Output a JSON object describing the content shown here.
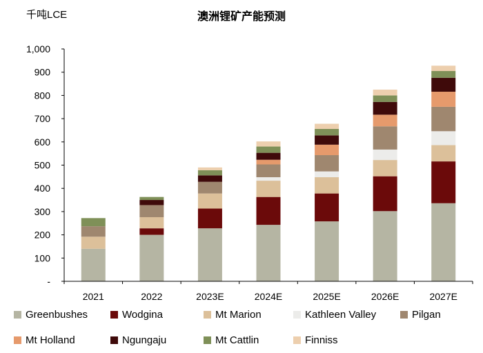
{
  "chart_data": {
    "type": "bar",
    "stacked": true,
    "title": "澳洲锂矿产能预测",
    "unit_label": "千吨LCE",
    "categories": [
      "2021",
      "2022",
      "2023E",
      "2024E",
      "2025E",
      "2026E",
      "2027E"
    ],
    "ylim": [
      0,
      1000
    ],
    "yticks": [
      0,
      100,
      200,
      300,
      400,
      500,
      600,
      700,
      800,
      900,
      1000
    ],
    "ytick_labels": [
      "-",
      "100",
      "200",
      "300",
      "400",
      "500",
      "600",
      "700",
      "800",
      "900",
      "1,000"
    ],
    "grid": false,
    "legend_position": "bottom",
    "series": [
      {
        "name": "Greenbushes",
        "color": "#b5b5a3",
        "values": [
          140,
          200,
          228,
          243,
          258,
          302,
          336
        ]
      },
      {
        "name": "Wodgina",
        "color": "#6b0a0a",
        "values": [
          0,
          28,
          85,
          120,
          120,
          150,
          180
        ]
      },
      {
        "name": "Mt Marion",
        "color": "#dcc09a",
        "values": [
          52,
          48,
          65,
          70,
          70,
          70,
          70
        ]
      },
      {
        "name": "Kathleen Valley",
        "color": "#ececea",
        "values": [
          0,
          0,
          0,
          15,
          25,
          45,
          60
        ]
      },
      {
        "name": "Pilgan",
        "color": "#9f876f",
        "values": [
          45,
          52,
          50,
          55,
          70,
          100,
          105
        ]
      },
      {
        "name": "Mt Holland",
        "color": "#e69a6c",
        "values": [
          0,
          0,
          0,
          20,
          45,
          50,
          65
        ]
      },
      {
        "name": "Ngungaju",
        "color": "#3f0a0a",
        "values": [
          0,
          22,
          28,
          30,
          40,
          55,
          60
        ]
      },
      {
        "name": "Mt Cattlin",
        "color": "#7f9058",
        "values": [
          35,
          13,
          22,
          27,
          28,
          28,
          29
        ]
      },
      {
        "name": "Finniss",
        "color": "#edcfae",
        "values": [
          0,
          0,
          12,
          22,
          22,
          25,
          23
        ]
      }
    ]
  }
}
